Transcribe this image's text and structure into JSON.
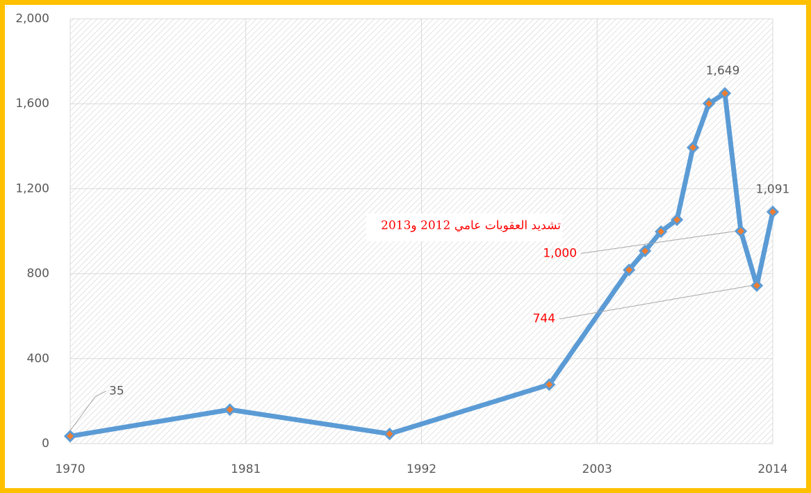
{
  "chart_data": {
    "type": "line",
    "x": [
      1970,
      1980,
      1990,
      2000,
      2005,
      2006,
      2007,
      2008,
      2009,
      2010,
      2011,
      2012,
      2013,
      2014
    ],
    "series": [
      {
        "color": "#5b9bd5",
        "values": [
          35,
          160,
          46,
          278,
          818,
          907,
          998,
          1054,
          1394,
          1601,
          1649,
          1000,
          744,
          1091
        ],
        "value_labels": [
          "35",
          null,
          null,
          null,
          null,
          null,
          null,
          null,
          null,
          null,
          "1,649",
          "1,000",
          "744",
          "1,091"
        ]
      }
    ],
    "marker_color": "#ed7d31",
    "annotation": "تشديد العقوبات عامي 2012 و2013",
    "xlim": [
      1970,
      2014
    ],
    "xticks": [
      1970,
      1981,
      1992,
      2003,
      2014
    ],
    "ylim": [
      0,
      2000
    ],
    "yticks": [
      0,
      400,
      800,
      {
        "value": 1200,
        "label": "1,200"
      },
      {
        "value": 1600,
        "label": "1,600"
      },
      {
        "value": 2000,
        "label": "2,000"
      }
    ],
    "grid": true
  }
}
